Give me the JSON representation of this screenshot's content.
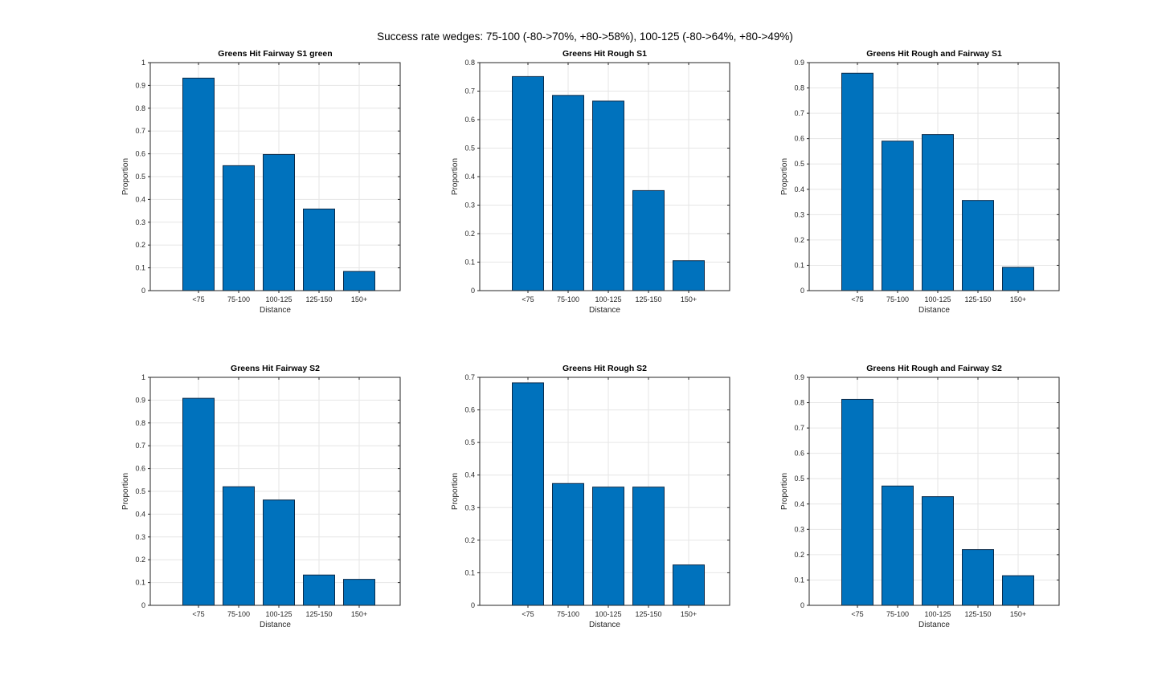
{
  "supertitle": "Success rate wedges: 75-100 (-80->70%, +80->58%), 100-125 (-80->64%, +80->49%)",
  "colors": {
    "bar_fill": "#0072BD",
    "bar_edge": "#0a2a4a",
    "axis": "#262626",
    "grid": "#e6e6e6",
    "tick_text": "#262626",
    "title_text": "#000000",
    "background": "#ffffff"
  },
  "chart_data": [
    {
      "type": "bar",
      "title": "Greens Hit Fairway S1 green",
      "categories": [
        "<75",
        "75-100",
        "100-125",
        "125-150",
        "150+"
      ],
      "values": [
        0.932,
        0.548,
        0.597,
        0.358,
        0.084
      ],
      "xlabel": "Distance",
      "ylabel": "Proportion",
      "ylim": [
        0,
        1
      ],
      "ytick_step": 0.1,
      "grid": true,
      "legend": null
    },
    {
      "type": "bar",
      "title": "Greens Hit Rough S1",
      "categories": [
        "<75",
        "75-100",
        "100-125",
        "125-150",
        "150+"
      ],
      "values": [
        0.751,
        0.685,
        0.665,
        0.351,
        0.105
      ],
      "xlabel": "Distance",
      "ylabel": "Proportion",
      "ylim": [
        0,
        0.8
      ],
      "ytick_step": 0.1,
      "grid": true,
      "legend": null
    },
    {
      "type": "bar",
      "title": "Greens Hit Rough and Fairway S1",
      "categories": [
        "<75",
        "75-100",
        "100-125",
        "125-150",
        "150+"
      ],
      "values": [
        0.858,
        0.59,
        0.616,
        0.356,
        0.092
      ],
      "xlabel": "Distance",
      "ylabel": "Proportion",
      "ylim": [
        0,
        0.9
      ],
      "ytick_step": 0.1,
      "grid": true,
      "legend": null
    },
    {
      "type": "bar",
      "title": "Greens Hit Fairway S2",
      "categories": [
        "<75",
        "75-100",
        "100-125",
        "125-150",
        "150+"
      ],
      "values": [
        0.908,
        0.52,
        0.462,
        0.133,
        0.114
      ],
      "xlabel": "Distance",
      "ylabel": "Proportion",
      "ylim": [
        0,
        1
      ],
      "ytick_step": 0.1,
      "grid": true,
      "legend": null
    },
    {
      "type": "bar",
      "title": "Greens Hit Rough S2",
      "categories": [
        "<75",
        "75-100",
        "100-125",
        "125-150",
        "150+"
      ],
      "values": [
        0.683,
        0.374,
        0.363,
        0.363,
        0.124
      ],
      "xlabel": "Distance",
      "ylabel": "Proportion",
      "ylim": [
        0,
        0.7
      ],
      "ytick_step": 0.1,
      "grid": true,
      "legend": null
    },
    {
      "type": "bar",
      "title": "Greens Hit Rough and Fairway S2",
      "categories": [
        "<75",
        "75-100",
        "100-125",
        "125-150",
        "150+"
      ],
      "values": [
        0.813,
        0.471,
        0.429,
        0.22,
        0.117
      ],
      "xlabel": "Distance",
      "ylabel": "Proportion",
      "ylim": [
        0,
        0.9
      ],
      "ytick_step": 0.1,
      "grid": true,
      "legend": null
    }
  ]
}
